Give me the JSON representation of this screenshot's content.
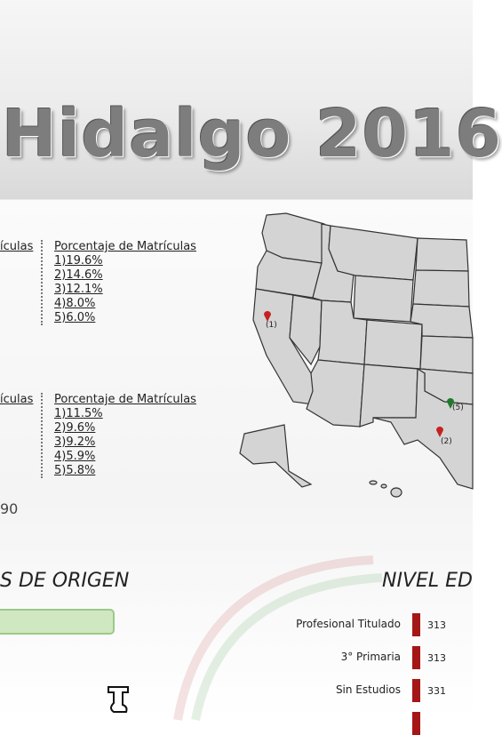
{
  "header": {
    "title": "Hidalgo 2016"
  },
  "tables": [
    {
      "left_header": "ículas",
      "header": "Porcentaje de Matrículas",
      "items": [
        "1)19.6%",
        "2)14.6%",
        "3)12.1%",
        "4)8.0%",
        "5)6.0%"
      ]
    },
    {
      "left_header": "ículas",
      "header": "Porcentaje de Matrículas",
      "items": [
        "1)11.5%",
        "2)9.6%",
        "3)9.2%",
        "4)5.9%",
        "5)5.8%"
      ]
    }
  ],
  "fragment_number": "90",
  "sections": {
    "origin_title": "S DE ORIGEN",
    "education_title": "NIVEL ED"
  },
  "education": [
    {
      "label": "Profesional Titulado",
      "value": 313
    },
    {
      "label": "3° Primaria",
      "value": 313
    },
    {
      "label": "Sin Estudios",
      "value": 331
    }
  ],
  "map": {
    "markers": [
      "(1)",
      "(5)",
      "(2)"
    ]
  }
}
